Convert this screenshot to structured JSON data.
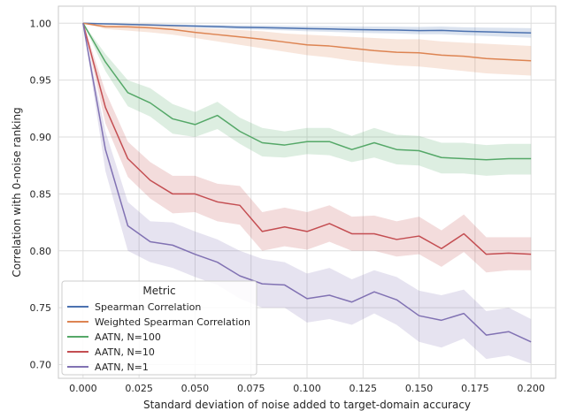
{
  "chart_data": {
    "type": "line",
    "xlabel": "Standard deviation of noise added to target-domain accuracy",
    "ylabel": "Correlation with 0-noise ranking",
    "xlim": [
      -0.011,
      0.211
    ],
    "ylim": [
      0.688,
      1.015
    ],
    "xticks": [
      0.0,
      0.025,
      0.05,
      0.075,
      0.1,
      0.125,
      0.15,
      0.175,
      0.2
    ],
    "xtick_labels": [
      "0.000",
      "0.025",
      "0.050",
      "0.075",
      "0.100",
      "0.125",
      "0.150",
      "0.175",
      "0.200"
    ],
    "yticks": [
      0.7,
      0.75,
      0.8,
      0.85,
      0.9,
      0.95,
      1.0
    ],
    "ytick_labels": [
      "0.70",
      "0.75",
      "0.80",
      "0.85",
      "0.90",
      "0.95",
      "1.00"
    ],
    "grid": true,
    "legend": {
      "title": "Metric",
      "placement": "lower-left"
    },
    "x": [
      0.0,
      0.01,
      0.02,
      0.03,
      0.04,
      0.05,
      0.06,
      0.07,
      0.08,
      0.09,
      0.1,
      0.11,
      0.12,
      0.13,
      0.14,
      0.15,
      0.16,
      0.17,
      0.18,
      0.19,
      0.2
    ],
    "series": [
      {
        "name": "Spearman Correlation",
        "color": "#4c72b0",
        "values": [
          1.0,
          0.9995,
          0.999,
          0.9985,
          0.998,
          0.9975,
          0.997,
          0.9965,
          0.9962,
          0.9958,
          0.9953,
          0.995,
          0.9945,
          0.9942,
          0.994,
          0.9935,
          0.9937,
          0.993,
          0.9925,
          0.992,
          0.9915
        ],
        "lower": [
          1.0,
          0.999,
          0.9983,
          0.9977,
          0.997,
          0.9963,
          0.9955,
          0.9948,
          0.9943,
          0.9937,
          0.993,
          0.9925,
          0.9918,
          0.9913,
          0.991,
          0.9903,
          0.9903,
          0.9895,
          0.9888,
          0.988,
          0.9873
        ],
        "upper": [
          1.0,
          1.0,
          0.9997,
          0.9993,
          0.999,
          0.9987,
          0.9985,
          0.9982,
          0.998,
          0.9978,
          0.9975,
          0.9974,
          0.9972,
          0.9971,
          0.997,
          0.9967,
          0.9971,
          0.9965,
          0.9962,
          0.996,
          0.9957
        ]
      },
      {
        "name": "Weighted Spearman Correlation",
        "color": "#dd8452",
        "values": [
          1.0,
          0.997,
          0.9968,
          0.996,
          0.9945,
          0.992,
          0.99,
          0.988,
          0.986,
          0.9835,
          0.981,
          0.98,
          0.978,
          0.976,
          0.9745,
          0.974,
          0.972,
          0.971,
          0.969,
          0.968,
          0.967
        ],
        "lower": [
          1.0,
          0.995,
          0.9935,
          0.992,
          0.99,
          0.987,
          0.984,
          0.981,
          0.978,
          0.975,
          0.972,
          0.97,
          0.967,
          0.965,
          0.963,
          0.962,
          0.96,
          0.958,
          0.956,
          0.955,
          0.954
        ],
        "upper": [
          1.0,
          0.999,
          0.9995,
          0.9993,
          0.998,
          0.996,
          0.995,
          0.994,
          0.993,
          0.991,
          0.99,
          0.989,
          0.988,
          0.987,
          0.986,
          0.986,
          0.984,
          0.983,
          0.982,
          0.981,
          0.98
        ]
      },
      {
        "name": "AATN, N=100",
        "color": "#55a868",
        "values": [
          1.0,
          0.966,
          0.939,
          0.93,
          0.916,
          0.911,
          0.919,
          0.905,
          0.895,
          0.893,
          0.896,
          0.896,
          0.889,
          0.895,
          0.889,
          0.888,
          0.882,
          0.881,
          0.88,
          0.881,
          0.881
        ],
        "lower": [
          1.0,
          0.958,
          0.927,
          0.918,
          0.903,
          0.9,
          0.907,
          0.894,
          0.883,
          0.882,
          0.885,
          0.884,
          0.878,
          0.882,
          0.876,
          0.875,
          0.868,
          0.868,
          0.866,
          0.867,
          0.867
        ],
        "upper": [
          1.0,
          0.973,
          0.95,
          0.943,
          0.929,
          0.922,
          0.931,
          0.917,
          0.908,
          0.905,
          0.908,
          0.908,
          0.901,
          0.908,
          0.902,
          0.901,
          0.895,
          0.895,
          0.893,
          0.894,
          0.894
        ]
      },
      {
        "name": "AATN, N=10",
        "color": "#c44e52",
        "values": [
          1.0,
          0.926,
          0.881,
          0.862,
          0.85,
          0.85,
          0.843,
          0.84,
          0.817,
          0.821,
          0.817,
          0.824,
          0.815,
          0.815,
          0.81,
          0.813,
          0.802,
          0.815,
          0.797,
          0.798,
          0.797
        ],
        "lower": [
          1.0,
          0.912,
          0.865,
          0.846,
          0.833,
          0.834,
          0.826,
          0.823,
          0.8,
          0.804,
          0.801,
          0.808,
          0.8,
          0.8,
          0.795,
          0.797,
          0.786,
          0.799,
          0.781,
          0.783,
          0.783
        ],
        "upper": [
          1.0,
          0.94,
          0.896,
          0.878,
          0.866,
          0.866,
          0.859,
          0.857,
          0.834,
          0.838,
          0.834,
          0.84,
          0.83,
          0.831,
          0.826,
          0.83,
          0.818,
          0.832,
          0.812,
          0.812,
          0.812
        ]
      },
      {
        "name": "AATN, N=1",
        "color": "#8172b3",
        "values": [
          1.0,
          0.889,
          0.822,
          0.808,
          0.805,
          0.797,
          0.79,
          0.778,
          0.771,
          0.77,
          0.758,
          0.761,
          0.755,
          0.764,
          0.757,
          0.743,
          0.739,
          0.745,
          0.726,
          0.729,
          0.72
        ],
        "lower": [
          1.0,
          0.87,
          0.8,
          0.79,
          0.785,
          0.777,
          0.77,
          0.758,
          0.75,
          0.75,
          0.737,
          0.74,
          0.735,
          0.745,
          0.735,
          0.72,
          0.715,
          0.723,
          0.705,
          0.708,
          0.701
        ],
        "upper": [
          1.0,
          0.905,
          0.843,
          0.826,
          0.825,
          0.817,
          0.81,
          0.8,
          0.793,
          0.79,
          0.78,
          0.785,
          0.775,
          0.783,
          0.777,
          0.765,
          0.761,
          0.766,
          0.747,
          0.75,
          0.74
        ]
      }
    ]
  }
}
